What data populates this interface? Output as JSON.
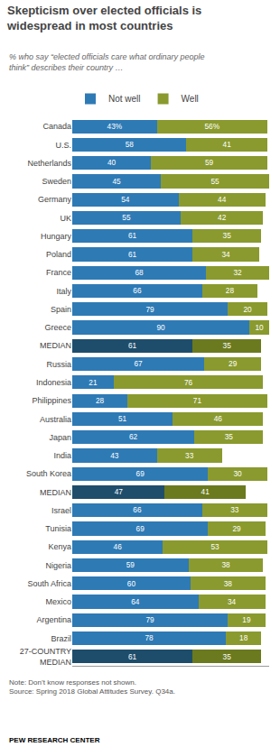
{
  "chart_data": {
    "type": "bar",
    "orientation": "horizontal",
    "stacked": true,
    "title": "Skepticism over elected officials is\nwidespread in most countries",
    "subtitle": "% who say “elected officials care what ordinary people\nthink” describes their country …",
    "annotations": [
      "Note: Don’t know responses not shown.\nSource: Spring 2018 Global Attitudes Survey. Q34a.",
      "PEW RESEARCH CENTER"
    ],
    "categories": [
      "Canada",
      "U.S.",
      "Netherlands",
      "Sweden",
      "Germany",
      "UK",
      "Hungary",
      "Poland",
      "France",
      "Italy",
      "Spain",
      "Greece",
      "MEDIAN",
      "Russia",
      "Indonesia",
      "Philippines",
      "Australia",
      "Japan",
      "India",
      "South Korea",
      "MEDIAN",
      "Israel",
      "Tunisia",
      "Kenya",
      "Nigeria",
      "South Africa",
      "Mexico",
      "Argentina",
      "Brazil",
      "27-COUNTRY\nMEDIAN"
    ],
    "series": [
      {
        "name": "Not well",
        "color": "#2E7AB5",
        "colors": [
          "#2E7AB5",
          "#2E7AB5",
          "#2E7AB5",
          "#2E7AB5",
          "#2E7AB5",
          "#2E7AB5",
          "#2E7AB5",
          "#2E7AB5",
          "#2E7AB5",
          "#2E7AB5",
          "#2E7AB5",
          "#2E7AB5",
          "#1E4D6B",
          "#2E7AB5",
          "#2E7AB5",
          "#2E7AB5",
          "#2E7AB5",
          "#2E7AB5",
          "#2E7AB5",
          "#2E7AB5",
          "#1E4D6B",
          "#2E7AB5",
          "#2E7AB5",
          "#2E7AB5",
          "#2E7AB5",
          "#2E7AB5",
          "#2E7AB5",
          "#2E7AB5",
          "#2E7AB5",
          "#1E4D6B"
        ],
        "values": [
          43,
          58,
          40,
          45,
          54,
          55,
          61,
          61,
          68,
          66,
          79,
          90,
          61,
          67,
          21,
          28,
          51,
          62,
          43,
          69,
          47,
          66,
          69,
          46,
          59,
          60,
          64,
          79,
          78,
          61
        ],
        "value_labels": [
          "43%",
          "58",
          "40",
          "45",
          "54",
          "55",
          "61",
          "61",
          "68",
          "66",
          "79",
          "90",
          "61",
          "67",
          "21",
          "28",
          "51",
          "62",
          "43",
          "69",
          "47",
          "66",
          "69",
          "46",
          "59",
          "60",
          "64",
          "79",
          "78",
          "61"
        ]
      },
      {
        "name": "Well",
        "color": "#8A9A2E",
        "colors": [
          "#8A9A2E",
          "#8A9A2E",
          "#8A9A2E",
          "#8A9A2E",
          "#8A9A2E",
          "#8A9A2E",
          "#8A9A2E",
          "#8A9A2E",
          "#8A9A2E",
          "#8A9A2E",
          "#8A9A2E",
          "#8A9A2E",
          "#6B7A1E",
          "#8A9A2E",
          "#8A9A2E",
          "#8A9A2E",
          "#8A9A2E",
          "#8A9A2E",
          "#8A9A2E",
          "#8A9A2E",
          "#6B7A1E",
          "#8A9A2E",
          "#8A9A2E",
          "#8A9A2E",
          "#8A9A2E",
          "#8A9A2E",
          "#8A9A2E",
          "#8A9A2E",
          "#8A9A2E",
          "#6B7A1E"
        ],
        "values": [
          56,
          41,
          59,
          55,
          44,
          42,
          35,
          34,
          32,
          28,
          20,
          10,
          35,
          29,
          76,
          71,
          46,
          35,
          33,
          30,
          41,
          33,
          29,
          53,
          38,
          38,
          34,
          19,
          18,
          35
        ],
        "value_labels": [
          "56%",
          "41",
          "59",
          "55",
          "44",
          "42",
          "35",
          "34",
          "32",
          "28",
          "20",
          "10",
          "35",
          "29",
          "76",
          "71",
          "46",
          "35",
          "33",
          "30",
          "41",
          "33",
          "29",
          "53",
          "38",
          "38",
          "34",
          "19",
          "18",
          "35"
        ]
      }
    ],
    "xlim": [
      0,
      100
    ],
    "data_labels": true,
    "tick_labels": "y",
    "grid": false,
    "legend": "top"
  }
}
